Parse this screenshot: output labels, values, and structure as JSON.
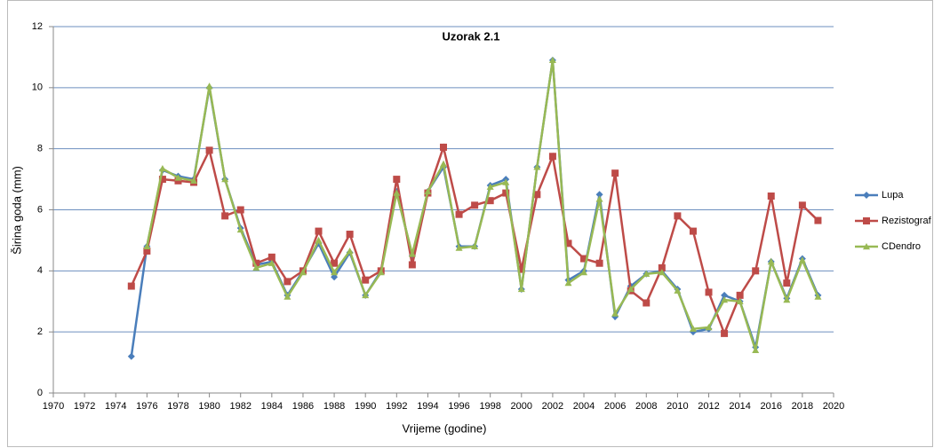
{
  "chart_data": {
    "type": "line",
    "title": "Uzorak 2.1",
    "x_label": "Vrijeme (godine)",
    "y_label": "Širina goda (mm)",
    "x": [
      1975,
      1976,
      1977,
      1978,
      1979,
      1980,
      1981,
      1982,
      1983,
      1984,
      1985,
      1986,
      1987,
      1988,
      1989,
      1990,
      1991,
      1992,
      1993,
      1994,
      1995,
      1996,
      1997,
      1998,
      1999,
      2000,
      2001,
      2002,
      2003,
      2004,
      2005,
      2006,
      2007,
      2008,
      2009,
      2010,
      2011,
      2012,
      2013,
      2014,
      2015,
      2016,
      2017,
      2018,
      2019
    ],
    "series": [
      {
        "name": "Lupa",
        "color": "#4a7ebb",
        "marker": "diamond",
        "values": [
          1.2,
          4.8,
          7.3,
          7.1,
          7.0,
          10.0,
          7.0,
          5.4,
          4.2,
          4.3,
          3.2,
          4.0,
          4.9,
          3.8,
          4.6,
          3.2,
          4.0,
          6.6,
          4.5,
          6.6,
          7.4,
          4.8,
          4.8,
          6.8,
          7.0,
          3.4,
          7.4,
          10.9,
          3.7,
          4.0,
          6.5,
          2.5,
          3.5,
          3.9,
          4.0,
          3.4,
          2.0,
          2.1,
          3.2,
          3.0,
          1.5,
          4.3,
          3.1,
          4.4,
          3.2
        ]
      },
      {
        "name": "Rezistograf",
        "color": "#be4b48",
        "marker": "square",
        "values": [
          3.5,
          4.65,
          7.0,
          6.95,
          6.9,
          7.95,
          5.8,
          6.0,
          4.25,
          4.45,
          3.65,
          4.0,
          5.3,
          4.25,
          5.2,
          3.7,
          4.0,
          7.0,
          4.2,
          6.55,
          8.05,
          5.85,
          6.15,
          6.3,
          6.55,
          4.05,
          6.5,
          7.75,
          4.9,
          4.4,
          4.25,
          7.2,
          3.35,
          2.95,
          4.1,
          5.8,
          5.3,
          3.3,
          1.95,
          3.2,
          4.0,
          6.45,
          3.6,
          6.15,
          5.65
        ]
      },
      {
        "name": "CDendro",
        "color": "#98b954",
        "marker": "triangle",
        "values": [
          null,
          4.8,
          7.35,
          7.05,
          6.95,
          10.05,
          7.0,
          5.35,
          4.1,
          4.25,
          3.15,
          3.95,
          5.0,
          3.95,
          4.65,
          3.2,
          3.95,
          6.55,
          4.55,
          6.6,
          7.5,
          4.75,
          4.8,
          6.75,
          6.9,
          3.4,
          7.4,
          10.9,
          3.6,
          3.95,
          6.35,
          2.6,
          3.4,
          3.9,
          3.95,
          3.35,
          2.1,
          2.15,
          3.05,
          3.0,
          1.4,
          4.3,
          3.05,
          4.35,
          3.15
        ]
      }
    ],
    "xlim": [
      1970,
      2020
    ],
    "xticks": [
      1970,
      1972,
      1974,
      1976,
      1978,
      1980,
      1982,
      1984,
      1986,
      1988,
      1990,
      1992,
      1994,
      1996,
      1998,
      2000,
      2002,
      2004,
      2006,
      2008,
      2010,
      2012,
      2014,
      2016,
      2018,
      2020
    ],
    "ylim": [
      0,
      12
    ],
    "yticks": [
      0,
      2,
      4,
      6,
      8,
      10,
      12
    ],
    "grid": true,
    "legend": "right"
  }
}
